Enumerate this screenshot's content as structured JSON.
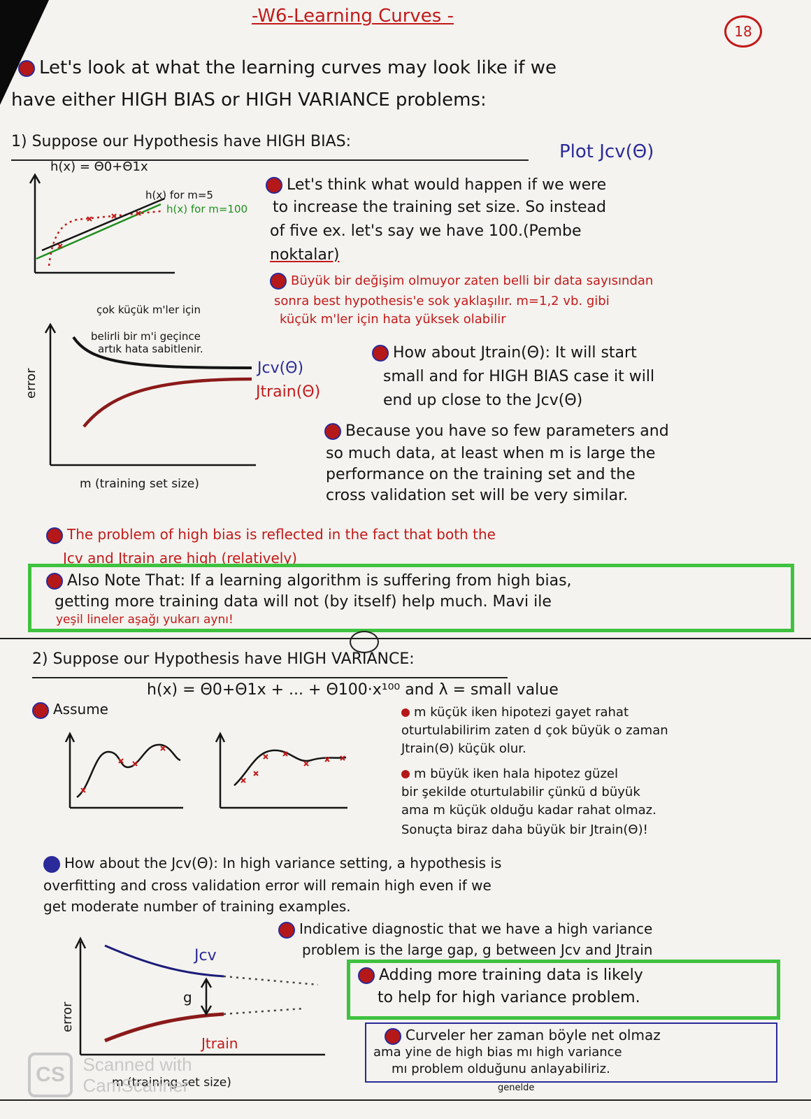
{
  "header": {
    "title": "-W6-Learning Curves -",
    "page_number": "18"
  },
  "intro": {
    "line1": "Let's look at what the learning curves may look like if we",
    "line2": "have either HIGH BIAS or HIGH VARIANCE problems:"
  },
  "section1": {
    "heading": "1) Suppose our Hypothesis have HIGH BIAS:",
    "plot_note": "Plot Jcv(Θ)",
    "fig1": {
      "hypothesis": "h(x) = Θ0+Θ1x",
      "label_m5": "h(x) for m=5",
      "label_m100": "h(x) for m=100"
    },
    "point1": {
      "line1": "Let's think what would happen if we were",
      "line2": "to increase the training set size. So instead",
      "line3": "of five ex. let's say we have 100.(Pembe",
      "line4": "noktalar)"
    },
    "note_tr": {
      "line1": "Büyük bir değişim olmuyor zaten belli bir data sayısından",
      "line2": "sonra best hypothesis'e sok yaklaşılır. m=1,2 vb. gibi",
      "line3": "küçük m'ler için hata yüksek olabilir"
    },
    "curve_fig": {
      "note_top": "çok küçük m'ler için",
      "note_a": "belirli bir m'i geçince",
      "note_b": "artık hata sabitlenir.",
      "jcv": "Jcv(Θ)",
      "jtrain": "Jtrain(Θ)",
      "ylabel": "error",
      "xlabel": "m (training set size)"
    },
    "point2": {
      "line1": "How about Jtrain(Θ): It will start",
      "line2": "small and for HIGH BIAS case it will",
      "line3": "end up close to the Jcv(Θ)"
    },
    "point3": {
      "line1": "Because you have so few parameters and",
      "line2": "so much data, at least when m is large the",
      "line3": "performance on the training set and the",
      "line4": "cross validation set will be very similar."
    },
    "problem": {
      "line1": "The problem of high bias is reflected in the fact that both the",
      "line2": "Jcv and Jtrain are high (relatively)"
    },
    "also_note": {
      "line1": "Also Note That: If a learning algorithm is suffering from high bias,",
      "line2": "getting more training data will not (by itself) help much. Mavi ile",
      "line3": "yeşil lineler aşağı yukarı aynı!"
    }
  },
  "section2": {
    "heading": "2) Suppose our Hypothesis have HIGH VARIANCE:",
    "hypothesis_line": "h(x) = Θ0+Θ1x + ... + Θ100·x¹⁰⁰ and λ = small value",
    "assume_label": "Assume",
    "tr_bullet1": {
      "line1": "m küçük iken hipotezi gayet rahat",
      "line2": "oturtulabilirim zaten d çok büyük o zaman",
      "line3": "Jtrain(Θ) küçük olur."
    },
    "tr_bullet2": {
      "line1": "m büyük iken hala hipotez güzel",
      "line2": "bir şekilde oturtulabilir çünkü d büyük",
      "line3": "ama m küçük olduğu kadar rahat olmaz.",
      "line4": "Sonuçta biraz daha büyük bir Jtrain(Θ)!"
    },
    "jcv_point": {
      "line1": "How about the Jcv(Θ): In high variance setting, a hypothesis is",
      "line2": "overfitting and cross validation error will remain high even if we",
      "line3": "get moderate number of training examples."
    },
    "indicative": {
      "line1": "Indicative diagnostic that we have a high variance",
      "line2": "problem is the large gap, g between Jcv and Jtrain"
    },
    "curve_fig": {
      "jcv": "Jcv",
      "gap": "g",
      "jtrain": "Jtrain",
      "ylabel": "error",
      "xlabel": "m (training set size)"
    },
    "adding": {
      "line1": "Adding more training data is likely",
      "line2": "to help for high variance problem."
    },
    "curves_note": {
      "line1": "Curveler her zaman böyle net olmaz",
      "line2": "ama yine de high bias mı high variance",
      "line3": "mı problem olduğunu anlayabiliriz.",
      "sub": "genelde"
    }
  },
  "watermark": {
    "logo": "CS",
    "line1": "Scanned with",
    "line2": "CamScanner"
  },
  "colors": {
    "ink": "#141414",
    "red": "#c21a1a",
    "blue": "#2a2a9a",
    "green": "#1f8f1f",
    "box_green": "#3fc23f"
  }
}
